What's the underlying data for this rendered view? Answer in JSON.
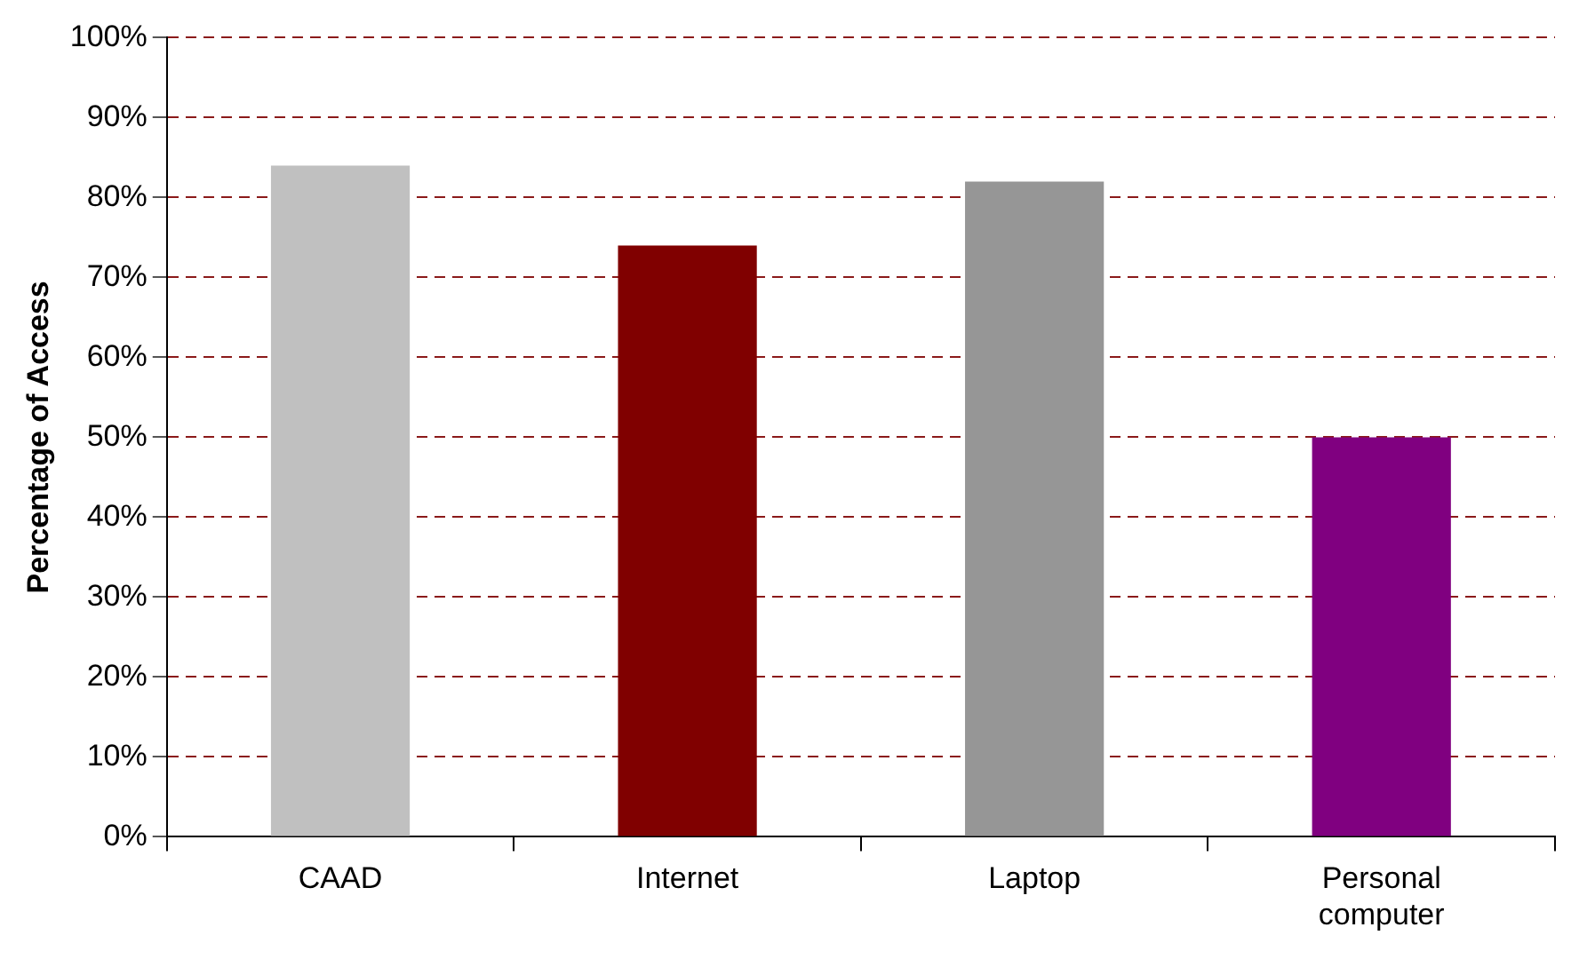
{
  "chart_data": {
    "type": "bar",
    "ylabel": "Percentage of Access",
    "categories": [
      "CAAD",
      "Internet",
      "Laptop",
      "Personal computer"
    ],
    "values": [
      84,
      74,
      82,
      50
    ],
    "colors": [
      "#c0c0c0",
      "#800000",
      "#969696",
      "#800080"
    ],
    "ylim": [
      0,
      100
    ],
    "yticks": [
      {
        "value": 0,
        "label": "0%"
      },
      {
        "value": 10,
        "label": "10%"
      },
      {
        "value": 20,
        "label": "20%"
      },
      {
        "value": 30,
        "label": "30%"
      },
      {
        "value": 40,
        "label": "40%"
      },
      {
        "value": 50,
        "label": "50%"
      },
      {
        "value": 60,
        "label": "60%"
      },
      {
        "value": 70,
        "label": "70%"
      },
      {
        "value": 80,
        "label": "80%"
      },
      {
        "value": 90,
        "label": "90%"
      },
      {
        "value": 100,
        "label": "100%"
      }
    ],
    "grid": "y"
  }
}
